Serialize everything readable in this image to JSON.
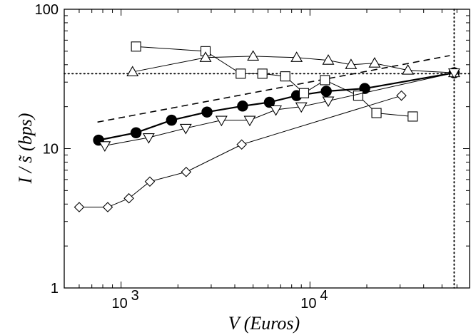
{
  "chart_data": {
    "type": "scatter",
    "title": "",
    "xlabel": "V (Euros)",
    "ylabel": "I / s̃ (bps)",
    "xscale": "log",
    "yscale": "log",
    "xlim": [
      500,
      70000
    ],
    "ylim": [
      1,
      100
    ],
    "y_ticks": [
      {
        "value": 1,
        "label": "1"
      },
      {
        "value": 10,
        "label": "10"
      },
      {
        "value": 100,
        "label": "100"
      }
    ],
    "x_ticks": [
      {
        "value": 1000,
        "base": "10",
        "exp": "3"
      },
      {
        "value": 10000,
        "base": "10",
        "exp": "4"
      }
    ],
    "grid": false,
    "legend": "none",
    "series": [
      {
        "marker": "filled-circle",
        "line": "thick",
        "x": [
          760,
          1200,
          1850,
          2850,
          4400,
          6100,
          8500,
          12200,
          19500,
          58000
        ],
        "y": [
          11.5,
          13.0,
          16.0,
          18.3,
          20.2,
          21.5,
          24.0,
          25.8,
          27.0,
          35.0
        ]
      },
      {
        "marker": "open-square",
        "line": "thin",
        "x": [
          1200,
          2800,
          4300,
          5600,
          7400,
          9300,
          12000,
          18000,
          22500,
          35000
        ],
        "y": [
          54.0,
          50.0,
          34.5,
          34.5,
          33.0,
          25.0,
          31.0,
          24.0,
          18.0,
          17.0
        ]
      },
      {
        "marker": "open-triangle-up",
        "line": "thin",
        "x": [
          1150,
          2800,
          5000,
          8500,
          12500,
          16500,
          22000,
          33000,
          58000
        ],
        "y": [
          35.5,
          45.0,
          46.0,
          45.0,
          43.0,
          40.0,
          41.0,
          36.5,
          35.0
        ]
      },
      {
        "marker": "open-triangle-down",
        "line": "thin",
        "x": [
          820,
          1400,
          2200,
          3400,
          4800,
          6600,
          9000,
          12500,
          58000
        ],
        "y": [
          10.5,
          12.0,
          14.0,
          16.0,
          16.0,
          19.0,
          20.0,
          22.0,
          35.0
        ]
      },
      {
        "marker": "open-diamond",
        "line": "thin",
        "x": [
          600,
          850,
          1100,
          1420,
          2210,
          4350,
          30500
        ],
        "y": [
          3.8,
          3.8,
          4.4,
          5.8,
          6.8,
          10.7,
          24.0
        ]
      }
    ],
    "reference_lines": [
      {
        "kind": "dashed-fit",
        "x": [
          750,
          55000
        ],
        "y": [
          15.5,
          46.5
        ]
      },
      {
        "kind": "dotted-horizontal",
        "y": 34.5
      },
      {
        "kind": "dotted-vertical",
        "x": 58000
      }
    ]
  }
}
